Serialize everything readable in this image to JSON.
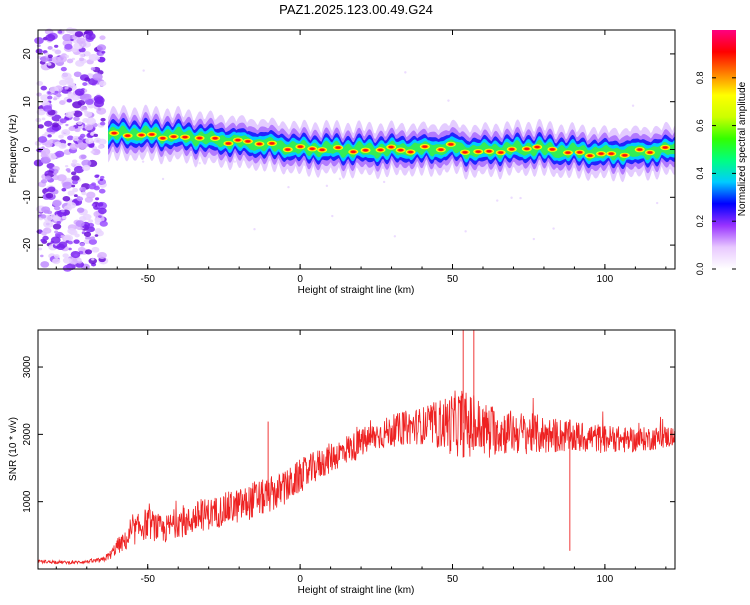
{
  "figure": {
    "title": "PAZ1.2025.123.00.49.G24"
  },
  "chart_data": [
    {
      "type": "heatmap",
      "xlabel": "Height of straight line (km)",
      "ylabel": "Frequency (Hz)",
      "xlim": [
        -86,
        123
      ],
      "ylim": [
        -25,
        25
      ],
      "x_ticks": [
        -50,
        0,
        50,
        100
      ],
      "y_ticks": [
        -20,
        -10,
        0,
        10,
        20
      ],
      "grid": false,
      "noise_region_x": [
        -86,
        -63
      ],
      "signal_trace": {
        "x": [
          -63,
          -55,
          -50,
          -45,
          -40,
          -35,
          -30,
          -25,
          -20,
          -15,
          -10,
          -5,
          0,
          5,
          10,
          15,
          20,
          25,
          30,
          35,
          40,
          45,
          47,
          50,
          55,
          60,
          65,
          70,
          75,
          78,
          80,
          85,
          90,
          95,
          100,
          105,
          110,
          115,
          120,
          123
        ],
        "freq": [
          3.2,
          3.3,
          3.2,
          3.0,
          2.9,
          2.6,
          2.2,
          1.9,
          1.6,
          1.3,
          1.0,
          0.6,
          0.2,
          0.2,
          0.1,
          0.0,
          -0.1,
          -0.1,
          0.0,
          0.1,
          0.1,
          0.2,
          0.3,
          0.6,
          -0.2,
          -0.3,
          0.0,
          0.1,
          0.2,
          0.4,
          0.0,
          -0.3,
          -0.4,
          -0.6,
          -0.8,
          -0.7,
          -0.6,
          -0.4,
          -0.1,
          0.0
        ]
      },
      "colorbar": {
        "label": "Normalized spectral amplitude",
        "range": [
          0.0,
          1.0
        ],
        "ticks": [
          0.0,
          0.2,
          0.4,
          0.6,
          0.8
        ],
        "tick_labels": [
          "0.0",
          "0.2",
          "0.4",
          "0.6",
          "0.8"
        ],
        "colors": [
          "#ffffff",
          "#e8c8ff",
          "#9933ff",
          "#0000ff",
          "#00ccff",
          "#00ff80",
          "#33ff00",
          "#ccff00",
          "#ffff00",
          "#ff8000",
          "#ff0000",
          "#ff0080"
        ]
      }
    },
    {
      "type": "line",
      "xlabel": "Height of straight line (km)",
      "ylabel": "SNR (10 * v/v)",
      "xlim": [
        -86,
        123
      ],
      "ylim": [
        0,
        3550
      ],
      "x_ticks": [
        -50,
        0,
        50,
        100
      ],
      "y_ticks": [
        1000,
        2000,
        3000
      ],
      "color": "#ee2222",
      "grid": false,
      "series": [
        {
          "x": [
            -86,
            -80,
            -75,
            -70,
            -65,
            -62,
            -60,
            -57,
            -55,
            -52,
            -50,
            -47,
            -45,
            -42,
            -40,
            -37,
            -35,
            -32,
            -30,
            -27,
            -25,
            -22,
            -20,
            -17,
            -15,
            -12,
            -10,
            -7,
            -5,
            -2,
            0,
            3,
            5,
            8,
            10,
            13,
            15,
            18,
            20,
            23,
            25,
            28,
            30,
            33,
            35,
            38,
            40,
            43,
            45,
            48,
            50,
            53,
            55,
            58,
            60,
            63,
            65,
            68,
            70,
            73,
            75,
            78,
            80,
            83,
            85,
            88,
            90,
            93,
            95,
            98,
            100,
            103,
            105,
            108,
            110,
            113,
            115,
            118,
            120,
            123
          ],
          "values": [
            110,
            105,
            95,
            110,
            130,
            220,
            340,
            420,
            540,
            640,
            680,
            620,
            560,
            650,
            720,
            680,
            760,
            800,
            820,
            850,
            880,
            920,
            940,
            980,
            1040,
            1060,
            1100,
            1150,
            1200,
            1300,
            1380,
            1450,
            1520,
            1600,
            1650,
            1720,
            1780,
            1820,
            1880,
            1930,
            1980,
            2020,
            2050,
            2080,
            2100,
            2120,
            2130,
            2140,
            2150,
            2160,
            2150,
            2180,
            2120,
            2100,
            2080,
            2060,
            2050,
            2040,
            2030,
            2020,
            2010,
            2000,
            1990,
            1980,
            1990,
            1970,
            1960,
            1950,
            1960,
            1940,
            1930,
            1940,
            1920,
            1910,
            1920,
            1930,
            1940,
            1950,
            1960,
            1970
          ],
          "noise_amplitude": [
            25,
            25,
            20,
            25,
            40,
            70,
            120,
            150,
            200,
            230,
            240,
            220,
            200,
            220,
            240,
            220,
            240,
            240,
            240,
            240,
            250,
            260,
            260,
            260,
            280,
            270,
            270,
            270,
            260,
            260,
            250,
            250,
            240,
            230,
            230,
            220,
            220,
            220,
            220,
            220,
            220,
            230,
            240,
            250,
            260,
            270,
            280,
            320,
            360,
            420,
            480,
            520,
            500,
            460,
            420,
            380,
            360,
            340,
            330,
            320,
            310,
            300,
            290,
            270,
            260,
            250,
            240,
            230,
            220,
            220,
            210,
            200,
            200,
            190,
            190,
            180,
            180,
            170,
            170,
            170
          ]
        }
      ],
      "spikes": [
        {
          "x": -10.5,
          "y": 2190
        },
        {
          "x": 53.5,
          "y": 3550
        },
        {
          "x": 57,
          "y": 3550
        },
        {
          "x": 88.5,
          "y": 270
        }
      ]
    }
  ]
}
